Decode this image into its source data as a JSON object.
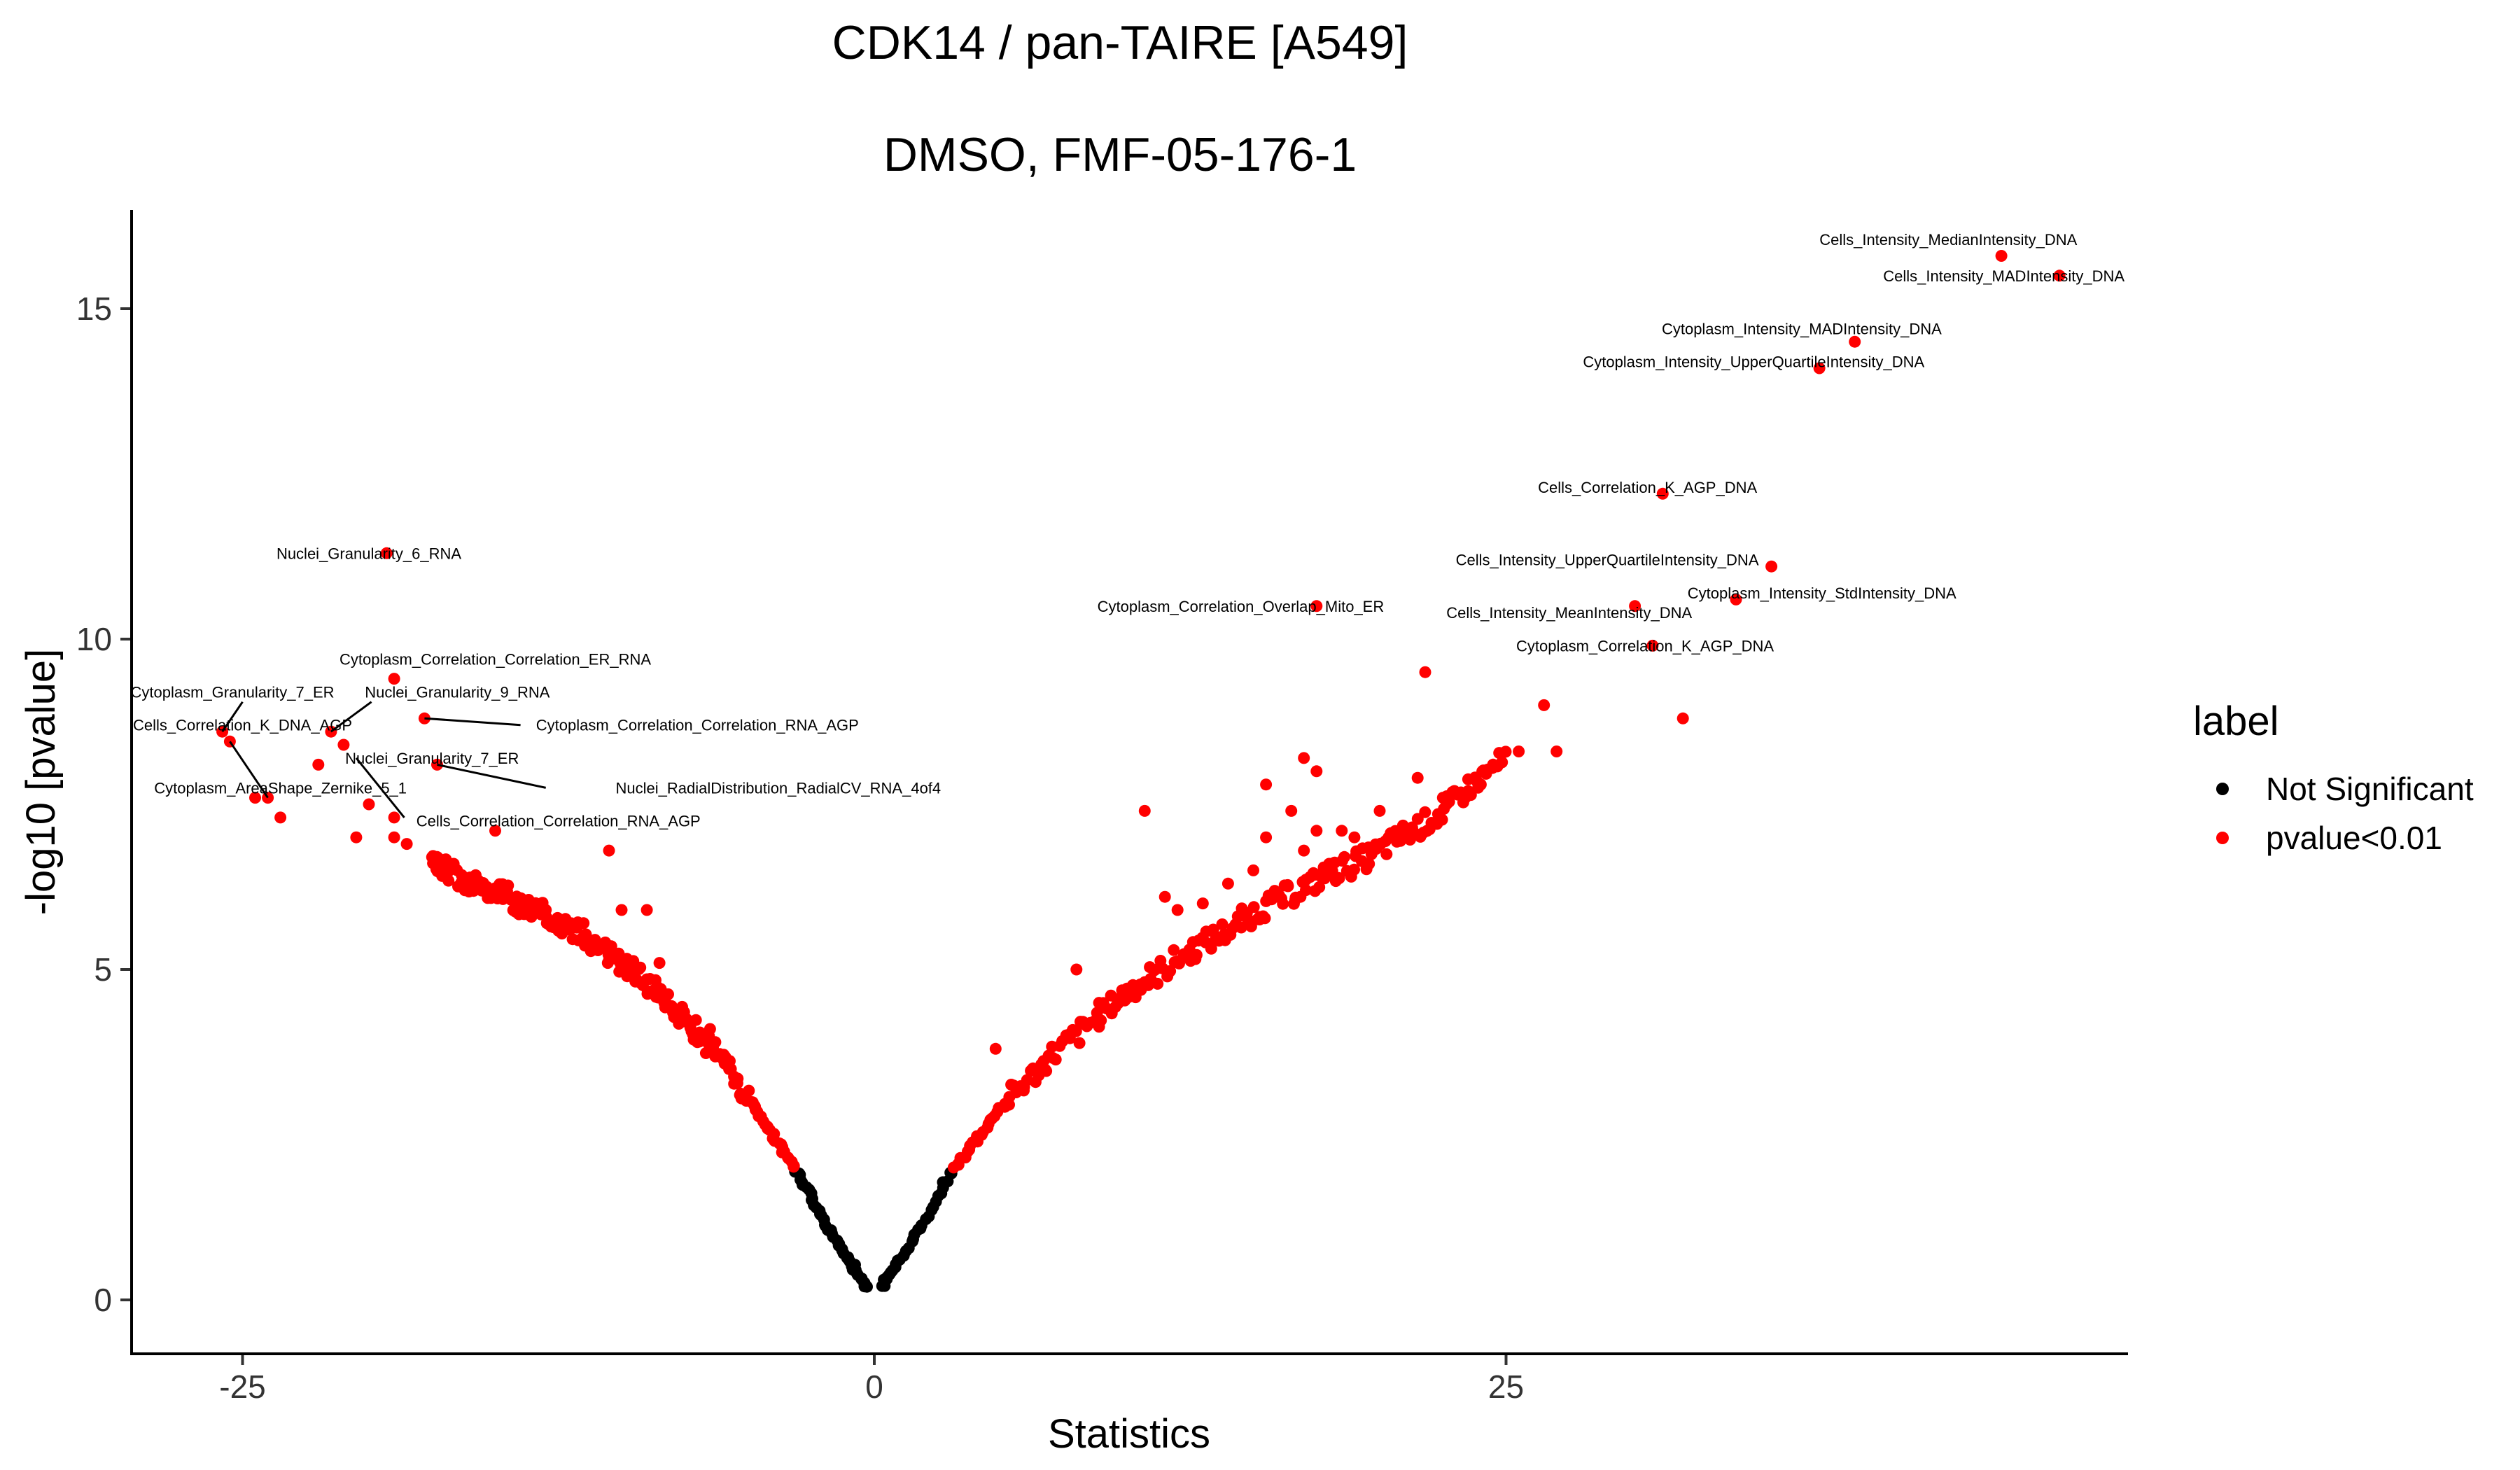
{
  "chart_data": {
    "type": "scatter",
    "title": "CDK14 / pan-TAIRE [A549]",
    "subtitle": "DMSO, FMF-05-176-1",
    "xlabel": "Statistics",
    "ylabel": "-log10 [pvalue]",
    "xlim": [
      -29.5,
      49.5
    ],
    "ylim": [
      -0.8,
      16.5
    ],
    "xticks": [
      -25,
      0,
      25
    ],
    "yticks": [
      0,
      5,
      10,
      15
    ],
    "grid": false,
    "legend": {
      "title": "label",
      "placement": "right",
      "entries": [
        {
          "name": "Not Significant",
          "color": "#000000"
        },
        {
          "name": "pvalue<0.01",
          "color": "#ff0000"
        }
      ]
    },
    "colors": {
      "not_significant": "#000000",
      "significant": "#ff0000"
    },
    "v_curve": {
      "description_free": true,
      "significance_threshold_y": 2.0,
      "left_branch": [
        [
          -0.3,
          0.2
        ],
        [
          -1.0,
          0.6
        ],
        [
          -2.0,
          1.2
        ],
        [
          -3.0,
          1.9
        ],
        [
          -4.0,
          2.5
        ],
        [
          -5.0,
          3.1
        ],
        [
          -6.0,
          3.6
        ],
        [
          -7.0,
          4.05
        ],
        [
          -8.0,
          4.45
        ],
        [
          -9.0,
          4.8
        ],
        [
          -10.0,
          5.1
        ],
        [
          -11.0,
          5.4
        ],
        [
          -12.0,
          5.65
        ],
        [
          -13.0,
          5.85
        ],
        [
          -14.0,
          6.0
        ],
        [
          -15.0,
          6.2
        ],
        [
          -16.0,
          6.35
        ],
        [
          -17.0,
          6.5
        ],
        [
          -17.5,
          6.6
        ]
      ],
      "right_branch": [
        [
          0.3,
          0.2
        ],
        [
          1.0,
          0.6
        ],
        [
          2.0,
          1.2
        ],
        [
          3.0,
          1.9
        ],
        [
          4.0,
          2.4
        ],
        [
          5.0,
          2.9
        ],
        [
          6.0,
          3.3
        ],
        [
          7.0,
          3.7
        ],
        [
          8.0,
          4.0
        ],
        [
          9.0,
          4.35
        ],
        [
          10.0,
          4.65
        ],
        [
          11.0,
          4.9
        ],
        [
          12.0,
          5.15
        ],
        [
          13.0,
          5.4
        ],
        [
          14.0,
          5.6
        ],
        [
          15.0,
          5.85
        ],
        [
          16.0,
          6.05
        ],
        [
          17.0,
          6.25
        ],
        [
          18.0,
          6.45
        ],
        [
          19.0,
          6.6
        ],
        [
          20.0,
          6.8
        ],
        [
          21.0,
          7.05
        ],
        [
          22.0,
          7.25
        ],
        [
          23.0,
          7.55
        ],
        [
          24.0,
          7.9
        ],
        [
          25.0,
          8.2
        ]
      ]
    },
    "extra_points": [
      [
        -24.5,
        7.6
      ],
      [
        -23.5,
        7.3
      ],
      [
        -22.0,
        8.1
      ],
      [
        -20.5,
        7.0
      ],
      [
        -20.0,
        7.5
      ],
      [
        -19.0,
        7.0
      ],
      [
        -18.5,
        6.9
      ],
      [
        -17.5,
        6.7
      ],
      [
        -15.0,
        7.1
      ],
      [
        -10.5,
        6.8
      ],
      [
        -13.0,
        5.9
      ],
      [
        -12.0,
        5.7
      ],
      [
        -10.0,
        5.9
      ],
      [
        -9.0,
        5.9
      ],
      [
        -8.5,
        5.1
      ],
      [
        -7.0,
        3.9
      ],
      [
        -6.5,
        4.1
      ],
      [
        -9.5,
        5.0
      ],
      [
        -11.5,
        5.5
      ],
      [
        4.8,
        3.8
      ],
      [
        8.0,
        5.0
      ],
      [
        10.7,
        7.4
      ],
      [
        11.5,
        6.1
      ],
      [
        12.0,
        5.9
      ],
      [
        13.0,
        6.0
      ],
      [
        14.0,
        6.3
      ],
      [
        15.0,
        6.5
      ],
      [
        15.5,
        7.8
      ],
      [
        15.5,
        7.0
      ],
      [
        17.0,
        6.8
      ],
      [
        17.5,
        7.1
      ],
      [
        16.5,
        7.4
      ],
      [
        17.0,
        8.2
      ],
      [
        17.5,
        8.0
      ],
      [
        18.0,
        6.6
      ],
      [
        18.5,
        7.1
      ],
      [
        19.0,
        7.0
      ],
      [
        20.0,
        7.4
      ],
      [
        21.5,
        7.9
      ],
      [
        22.5,
        7.6
      ],
      [
        23.5,
        7.7
      ],
      [
        24.0,
        7.8
      ],
      [
        25.5,
        8.3
      ],
      [
        26.5,
        9.0
      ],
      [
        27.0,
        8.3
      ],
      [
        21.8,
        9.5
      ],
      [
        32.0,
        8.8
      ]
    ],
    "labeled_points": [
      {
        "x": 44.6,
        "y": 15.8,
        "label": "Cells_Intensity_MedianIntensity_DNA",
        "lx": 42.5,
        "ly": 16.05,
        "anchor": "middle"
      },
      {
        "x": 46.9,
        "y": 15.5,
        "label": "Cells_Intensity_MADIntensity_DNA",
        "lx": 44.7,
        "ly": 15.5,
        "anchor": "middle"
      },
      {
        "x": 38.8,
        "y": 14.5,
        "label": "Cytoplasm_Intensity_MADIntensity_DNA",
        "lx": 36.7,
        "ly": 14.7,
        "anchor": "middle"
      },
      {
        "x": 37.4,
        "y": 14.1,
        "label": "Cytoplasm_Intensity_UpperQuartileIntensity_DNA",
        "lx": 34.8,
        "ly": 14.2,
        "anchor": "middle"
      },
      {
        "x": 31.2,
        "y": 12.2,
        "label": "Cells_Correlation_K_AGP_DNA",
        "lx": 30.6,
        "ly": 12.3,
        "anchor": "middle"
      },
      {
        "x": 35.5,
        "y": 11.1,
        "label": "Cells_Intensity_UpperQuartileIntensity_DNA",
        "lx": 35.0,
        "ly": 11.2,
        "anchor": "end"
      },
      {
        "x": 34.1,
        "y": 10.6,
        "label": "Cytoplasm_Intensity_StdIntensity_DNA",
        "lx": 37.5,
        "ly": 10.7,
        "anchor": "middle"
      },
      {
        "x": 30.8,
        "y": 9.9,
        "label": "Cytoplasm_Correlation_K_AGP_DNA",
        "lx": 30.5,
        "ly": 9.9,
        "anchor": "middle"
      },
      {
        "x": 30.1,
        "y": 10.5,
        "label": "Cells_Intensity_MeanIntensity_DNA",
        "lx": 27.5,
        "ly": 10.4,
        "anchor": "middle"
      },
      {
        "x": 17.5,
        "y": 10.5,
        "label": "Cytoplasm_Correlation_Overlap_Mito_ER",
        "lx": 14.5,
        "ly": 10.5,
        "anchor": "middle"
      },
      {
        "x": -19.3,
        "y": 11.3,
        "label": "Nuclei_Granularity_6_RNA",
        "lx": -20.0,
        "ly": 11.3,
        "anchor": "middle"
      },
      {
        "x": -19.0,
        "y": 9.4,
        "label": "Cytoplasm_Correlation_Correlation_ER_RNA",
        "lx": -15.0,
        "ly": 9.7,
        "anchor": "middle"
      },
      {
        "x": -25.8,
        "y": 8.6,
        "label": "Cytoplasm_Granularity_7_ER",
        "lx": -25.4,
        "ly": 9.2,
        "anchor": "middle"
      },
      {
        "x": -21.5,
        "y": 8.6,
        "label": "Nuclei_Granularity_9_RNA",
        "lx": -16.5,
        "ly": 9.2,
        "anchor": "middle"
      },
      {
        "x": -25.5,
        "y": 8.45,
        "label": "Cells_Correlation_K_DNA_AGP",
        "lx": -25.0,
        "ly": 8.7,
        "anchor": "middle"
      },
      {
        "x": -17.8,
        "y": 8.8,
        "label": "Cytoplasm_Correlation_Correlation_RNA_AGP",
        "lx": -7.0,
        "ly": 8.7,
        "anchor": "middle"
      },
      {
        "x": -21.0,
        "y": 8.4,
        "label": "Nuclei_Granularity_7_ER",
        "lx": -17.5,
        "ly": 8.2,
        "anchor": "middle"
      },
      {
        "x": -17.3,
        "y": 8.1,
        "label": "Nuclei_RadialDistribution_RadialCV_RNA_4of4",
        "lx": -3.8,
        "ly": 7.75,
        "anchor": "middle"
      },
      {
        "x": -24.0,
        "y": 7.6,
        "label": "Cytoplasm_AreaShape_Zernike_5_1",
        "lx": -23.5,
        "ly": 7.75,
        "anchor": "middle"
      },
      {
        "x": -19.0,
        "y": 7.3,
        "label": "Cells_Correlation_Correlation_RNA_AGP",
        "lx": -12.5,
        "ly": 7.25,
        "anchor": "middle"
      }
    ],
    "label_connectors": [
      {
        "from": [
          -25.8,
          8.6
        ],
        "to": [
          -25.0,
          9.05
        ]
      },
      {
        "from": [
          -21.5,
          8.6
        ],
        "to": [
          -19.9,
          9.05
        ]
      },
      {
        "from": [
          -17.8,
          8.8
        ],
        "to": [
          -14.0,
          8.7
        ]
      },
      {
        "from": [
          -17.3,
          8.1
        ],
        "to": [
          -13.0,
          7.75
        ]
      },
      {
        "from": [
          -25.5,
          8.45
        ],
        "to": [
          -24.0,
          7.6
        ]
      },
      {
        "from": [
          -20.5,
          8.2
        ],
        "to": [
          -18.6,
          7.3
        ]
      }
    ]
  }
}
